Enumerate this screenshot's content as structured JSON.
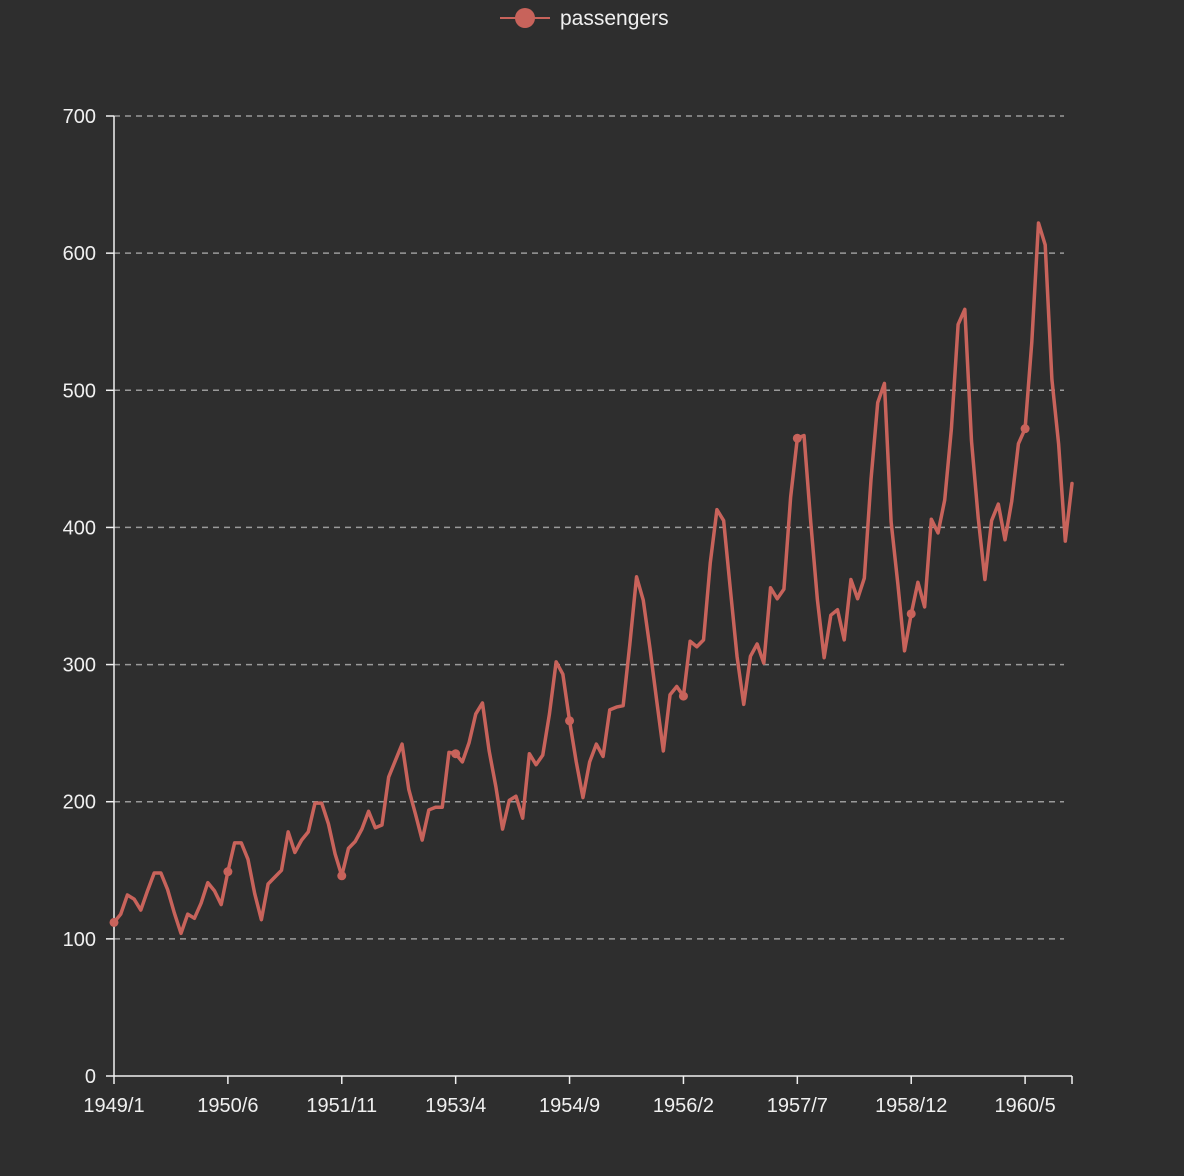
{
  "colors": {
    "background": "#2e2e2e",
    "series": "#c8635b",
    "axis": "#f0f0f0",
    "grid": "#9a9a9a",
    "text": "#f0f0f0"
  },
  "chart_data": {
    "type": "line",
    "title": "",
    "xlabel": "",
    "ylabel": "",
    "legend": {
      "position": "top-center",
      "entries": [
        "passengers"
      ]
    },
    "grid": {
      "y": true,
      "x": false,
      "style": "dashed"
    },
    "ylim": [
      0,
      700
    ],
    "y_ticks": [
      "0",
      "100",
      "200",
      "300",
      "400",
      "500",
      "600",
      "700"
    ],
    "x_tick_labels": [
      "1949/1",
      "1950/6",
      "1951/11",
      "1953/4",
      "1954/9",
      "1956/2",
      "1957/7",
      "1958/12",
      "1960/5"
    ],
    "x_tick_indices": [
      0,
      17,
      34,
      51,
      68,
      85,
      102,
      119,
      136
    ],
    "x_count": 144,
    "x_start": "1949/1",
    "x_end": "1960/12",
    "marked_points": [
      0,
      17,
      34,
      51,
      68,
      85,
      102,
      119,
      136
    ],
    "series": [
      {
        "name": "passengers",
        "values": [
          112,
          118,
          132,
          129,
          121,
          135,
          148,
          148,
          136,
          119,
          104,
          118,
          115,
          126,
          141,
          135,
          125,
          149,
          170,
          170,
          158,
          133,
          114,
          140,
          145,
          150,
          178,
          163,
          172,
          178,
          199,
          199,
          184,
          162,
          146,
          166,
          171,
          180,
          193,
          181,
          183,
          218,
          230,
          242,
          209,
          191,
          172,
          194,
          196,
          196,
          236,
          235,
          229,
          243,
          264,
          272,
          237,
          211,
          180,
          201,
          204,
          188,
          235,
          227,
          234,
          264,
          302,
          293,
          259,
          229,
          203,
          229,
          242,
          233,
          267,
          269,
          270,
          315,
          364,
          347,
          312,
          274,
          237,
          278,
          284,
          277,
          317,
          313,
          318,
          374,
          413,
          405,
          355,
          306,
          271,
          306,
          315,
          301,
          356,
          348,
          355,
          422,
          465,
          467,
          404,
          347,
          305,
          336,
          340,
          318,
          362,
          348,
          363,
          435,
          491,
          505,
          404,
          359,
          310,
          337,
          360,
          342,
          406,
          396,
          420,
          472,
          548,
          559,
          463,
          407,
          362,
          405,
          417,
          391,
          419,
          461,
          472,
          535,
          622,
          606,
          508,
          461,
          390,
          432
        ]
      }
    ]
  }
}
